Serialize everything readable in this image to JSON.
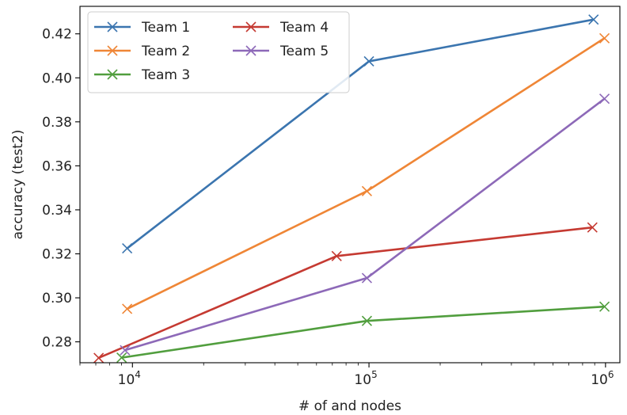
{
  "chart_data": {
    "type": "line",
    "xlabel": "# of and nodes",
    "ylabel": "accuracy (test2)",
    "xscale": "log",
    "xlim": [
      6000,
      1150000
    ],
    "ylim": [
      0.2705,
      0.4325
    ],
    "x_ticks": [
      {
        "value": 10000,
        "base": "10",
        "exp": "4"
      },
      {
        "value": 100000,
        "base": "10",
        "exp": "5"
      },
      {
        "value": 1000000,
        "base": "10",
        "exp": "6"
      }
    ],
    "y_ticks": [
      0.28,
      0.3,
      0.32,
      0.34,
      0.36,
      0.38,
      0.4,
      0.42
    ],
    "y_tick_labels": [
      "0.28",
      "0.30",
      "0.32",
      "0.34",
      "0.36",
      "0.38",
      "0.40",
      "0.42"
    ],
    "legend_position": "top-left",
    "grid": false,
    "series": [
      {
        "name": "Team 1",
        "color": "#3b75af",
        "marker": "x",
        "points": [
          [
            9500,
            0.3225
          ],
          [
            100000,
            0.4075
          ],
          [
            890000,
            0.4265
          ]
        ]
      },
      {
        "name": "Team 2",
        "color": "#ef8636",
        "marker": "x",
        "points": [
          [
            9500,
            0.295
          ],
          [
            98000,
            0.3485
          ],
          [
            990000,
            0.418
          ]
        ]
      },
      {
        "name": "Team 3",
        "color": "#519e3e",
        "marker": "x",
        "points": [
          [
            9000,
            0.2728
          ],
          [
            98000,
            0.2895
          ],
          [
            990000,
            0.296
          ]
        ]
      },
      {
        "name": "Team 4",
        "color": "#c53a32",
        "marker": "x",
        "points": [
          [
            7200,
            0.2727
          ],
          [
            73000,
            0.319
          ],
          [
            880000,
            0.332
          ]
        ]
      },
      {
        "name": "Team 5",
        "color": "#8d69b8",
        "marker": "x",
        "points": [
          [
            9300,
            0.2762
          ],
          [
            98000,
            0.309
          ],
          [
            990000,
            0.3905
          ]
        ]
      }
    ]
  }
}
